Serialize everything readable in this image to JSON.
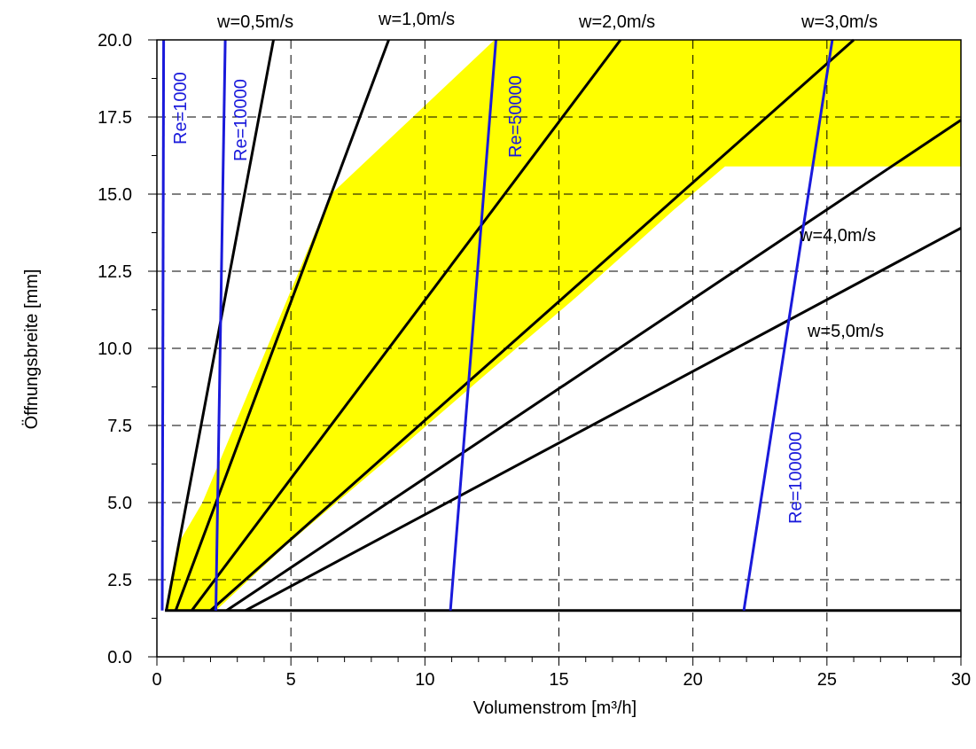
{
  "chart_data": {
    "type": "line",
    "xlabel": "Volumenstrom [m³/h]",
    "ylabel": "Öffnungsbreite [mm]",
    "xlim": [
      0,
      30
    ],
    "ylim": [
      0,
      20
    ],
    "xticks": [
      0,
      5,
      10,
      15,
      20,
      25,
      30
    ],
    "xtick_labels": [
      "0",
      "5",
      "10",
      "15",
      "20",
      "25",
      "30"
    ],
    "yticks": [
      0,
      2.5,
      5,
      7.5,
      10,
      12.5,
      15,
      17.5,
      20
    ],
    "ytick_labels": [
      "0.0",
      "2.5",
      "5.0",
      "7.5",
      "10.0",
      "12.5",
      "15.0",
      "17.5",
      "20.0"
    ],
    "grid": true,
    "colors": {
      "velocity": "#000000",
      "reynolds": "#1a1adb",
      "region": "#ffff00"
    },
    "region_polygon": [
      [
        0.3,
        1.5
      ],
      [
        0.75,
        3.6
      ],
      [
        1.7,
        5.0
      ],
      [
        6.5,
        15.0
      ],
      [
        12.6,
        20.0
      ],
      [
        30,
        20.0
      ],
      [
        30,
        15.9
      ],
      [
        21.2,
        15.9
      ],
      [
        19.3,
        14.5
      ],
      [
        15.7,
        11.7
      ],
      [
        12.2,
        9.1
      ],
      [
        8.6,
        6.4
      ],
      [
        4.8,
        3.6
      ],
      [
        2.2,
        1.5
      ]
    ],
    "bottom_line": {
      "x": [
        0.3,
        30
      ],
      "y": [
        1.5,
        1.5
      ]
    },
    "series": [
      {
        "name": "w=0,5m/s",
        "label_ref": "velocity_labels.0",
        "x": [
          0.35,
          4.35
        ],
        "y": [
          1.5,
          20.0
        ]
      },
      {
        "name": "w=1,0m/s",
        "label_ref": "velocity_labels.1",
        "x": [
          0.7,
          8.65
        ],
        "y": [
          1.5,
          20.0
        ]
      },
      {
        "name": "w=2,0m/s",
        "label_ref": "velocity_labels.2",
        "x": [
          1.3,
          17.3
        ],
        "y": [
          1.5,
          20.0
        ]
      },
      {
        "name": "w=3,0m/s",
        "label_ref": "velocity_labels.3",
        "x": [
          2.0,
          26.0
        ],
        "y": [
          1.5,
          20.0
        ]
      },
      {
        "name": "w=4,0m/s",
        "label_ref": "velocity_labels.4",
        "x": [
          2.6,
          30.0
        ],
        "y": [
          1.5,
          17.4
        ]
      },
      {
        "name": "w=5,0m/s",
        "label_ref": "velocity_labels.5",
        "x": [
          3.3,
          30.0
        ],
        "y": [
          1.5,
          13.9
        ]
      },
      {
        "name": "Re=1000",
        "label_ref": "reynolds_labels.0",
        "x": [
          0.2,
          0.25
        ],
        "y": [
          1.5,
          20.0
        ]
      },
      {
        "name": "Re=10000",
        "label_ref": "reynolds_labels.1",
        "x": [
          2.2,
          2.55
        ],
        "y": [
          1.5,
          20.0
        ]
      },
      {
        "name": "Re=50000",
        "label_ref": "reynolds_labels.2",
        "x": [
          10.95,
          12.65
        ],
        "y": [
          1.5,
          20.0
        ]
      },
      {
        "name": "Re=100000",
        "label_ref": "reynolds_labels.3",
        "x": [
          21.9,
          25.2
        ],
        "y": [
          1.5,
          20.0
        ]
      }
    ],
    "velocity_labels": [
      "w=0,5m/s",
      "w=1,0m/s",
      "w=2,0m/s",
      "w=3,0m/s",
      "w=4,0m/s",
      "w=5,0m/s"
    ],
    "reynolds_labels": [
      "Re=1000",
      "Re=10000",
      "Re=50000",
      "Re=100000"
    ]
  }
}
